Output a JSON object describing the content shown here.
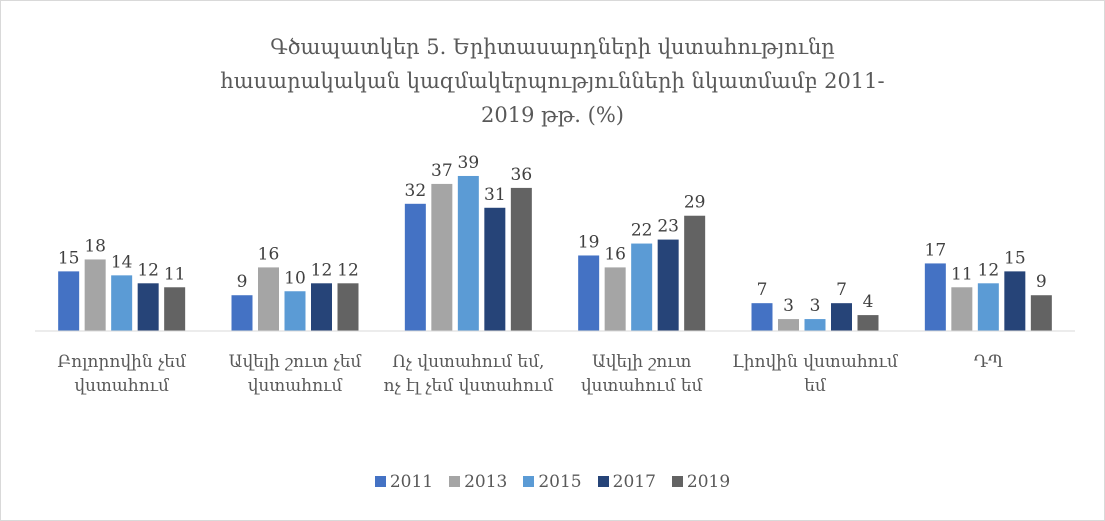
{
  "chart_data": {
    "type": "bar",
    "title": "Գծապատկեր 5. Երիտասարդների վստահությունը հասարակական կազմակերպությունների նկատմամբ 2011-2019 թթ. (%)",
    "categories": [
      "Բոլորովին չեմ վստահում",
      "Ավելի շուտ չեմ վստահում",
      "Ոչ վստահում եմ, ոչ էլ չեմ վստահում",
      "Ավելի շուտ վստահում եմ",
      "Լիովին վստահում եմ",
      "ԴՊ"
    ],
    "series": [
      {
        "name": "2011",
        "color": "#4472c4",
        "values": [
          15,
          9,
          32,
          19,
          7,
          17
        ]
      },
      {
        "name": "2013",
        "color": "#a5a5a5",
        "values": [
          18,
          16,
          37,
          16,
          3,
          11
        ]
      },
      {
        "name": "2015",
        "color": "#5b9bd5",
        "values": [
          14,
          10,
          39,
          22,
          3,
          12
        ]
      },
      {
        "name": "2017",
        "color": "#264478",
        "values": [
          12,
          12,
          31,
          23,
          7,
          15
        ]
      },
      {
        "name": "2019",
        "color": "#636363",
        "values": [
          11,
          12,
          36,
          29,
          4,
          9
        ]
      }
    ],
    "ylim": [
      0,
      40
    ],
    "legend": "bottom"
  }
}
